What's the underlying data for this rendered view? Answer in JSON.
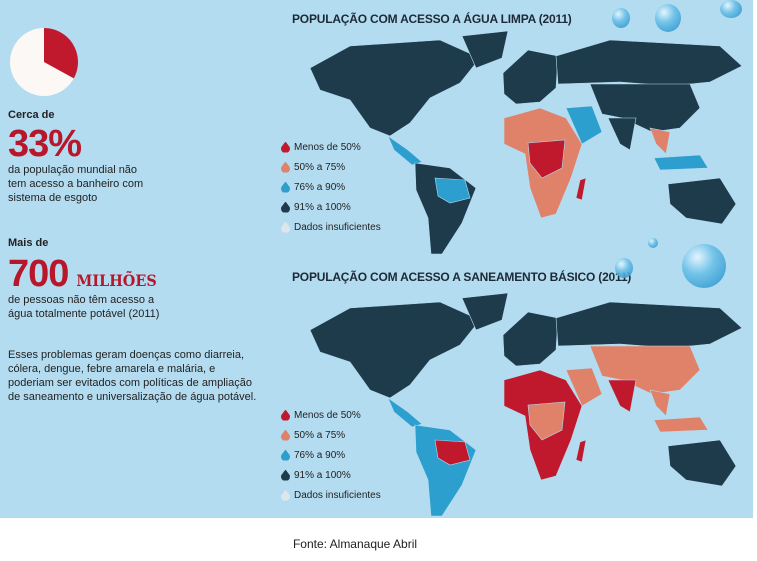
{
  "stats": {
    "pie_fraction": 0.33,
    "stat1_prefix": "Cerca de",
    "stat1_value": "33%",
    "stat1_desc_lines": [
      "da população mundial não",
      "tem acesso a banheiro com",
      "sistema de esgoto"
    ],
    "stat2_prefix": "Mais de",
    "stat2_value": "700",
    "stat2_unit": "MILHÕES",
    "stat2_desc_lines": [
      "de pessoas não têm acesso a",
      "água totalmente potável (2011)"
    ],
    "note_lines": [
      "Esses problemas geram doenças como diarreia,",
      "cólera, dengue, febre amarela e malária, e",
      "poderiam ser evitados com políticas de ampliação",
      "de saneamento e universalização de água potável."
    ]
  },
  "legend": [
    {
      "label": "Menos de 50%",
      "color": "#c0192e"
    },
    {
      "label": "50% a 75%",
      "color": "#e0826a"
    },
    {
      "label": "76% a 90%",
      "color": "#2c9fcf"
    },
    {
      "label": "91% a 100%",
      "color": "#1e3b4c"
    },
    {
      "label": "Dados insuficientes",
      "color": "#dde6ea"
    }
  ],
  "maps": [
    {
      "title": "POPULAÇÃO COM ACESSO A ÁGUA LIMPA (2011)",
      "regions": {
        "na": 3,
        "gl": 3,
        "ca": 2,
        "sa": 3,
        "sa2": 2,
        "eu": 3,
        "af": 1,
        "af2": 0,
        "me": 2,
        "ru": 3,
        "cn": 3,
        "in": 3,
        "sea": 1,
        "id": 2,
        "au": 3,
        "mg": 0
      }
    },
    {
      "title": "POPULAÇÃO COM ACESSO A SANEAMENTO BÁSICO (2011)",
      "regions": {
        "na": 3,
        "gl": 3,
        "ca": 2,
        "sa": 2,
        "sa2": 0,
        "eu": 3,
        "af": 0,
        "af2": 1,
        "me": 1,
        "ru": 3,
        "cn": 1,
        "in": 0,
        "sea": 1,
        "id": 1,
        "au": 3,
        "mg": 0
      }
    }
  ],
  "caption": "Fonte: Almanaque Abril"
}
